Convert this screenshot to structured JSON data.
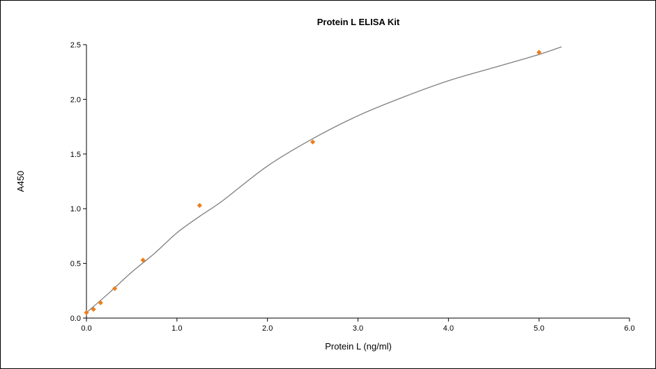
{
  "chart_data": {
    "type": "scatter",
    "title": "Protein L ELISA Kit",
    "xlabel": "Protein L (ng/ml)",
    "ylabel": "A450",
    "xlim": [
      0,
      6
    ],
    "ylim": [
      0,
      2.5
    ],
    "x_ticks": [
      "0.0",
      "1.0",
      "2.0",
      "3.0",
      "4.0",
      "5.0",
      "6.0"
    ],
    "y_ticks": [
      "0.0",
      "0.5",
      "1.0",
      "1.5",
      "2.0",
      "2.5"
    ],
    "grid": false,
    "series": [
      {
        "points": [
          {
            "x": 0.0,
            "y": 0.05
          },
          {
            "x": 0.078,
            "y": 0.08
          },
          {
            "x": 0.156,
            "y": 0.14
          },
          {
            "x": 0.313,
            "y": 0.27
          },
          {
            "x": 0.625,
            "y": 0.53
          },
          {
            "x": 1.25,
            "y": 1.03
          },
          {
            "x": 2.5,
            "y": 1.61
          },
          {
            "x": 5.0,
            "y": 2.43
          }
        ],
        "marker_color": "#ef7d1a"
      }
    ],
    "fit_curve": {
      "color": "#7f7f7f",
      "x_range": [
        0,
        5.25
      ],
      "points": [
        {
          "x": 0.0,
          "y": 0.05
        },
        {
          "x": 0.25,
          "y": 0.23
        },
        {
          "x": 0.5,
          "y": 0.42
        },
        {
          "x": 0.75,
          "y": 0.59
        },
        {
          "x": 1.0,
          "y": 0.78
        },
        {
          "x": 1.25,
          "y": 0.93
        },
        {
          "x": 1.5,
          "y": 1.07
        },
        {
          "x": 2.0,
          "y": 1.39
        },
        {
          "x": 2.5,
          "y": 1.64
        },
        {
          "x": 3.0,
          "y": 1.85
        },
        {
          "x": 3.5,
          "y": 2.02
        },
        {
          "x": 4.0,
          "y": 2.17
        },
        {
          "x": 4.5,
          "y": 2.29
        },
        {
          "x": 5.0,
          "y": 2.41
        },
        {
          "x": 5.25,
          "y": 2.48
        }
      ]
    }
  }
}
